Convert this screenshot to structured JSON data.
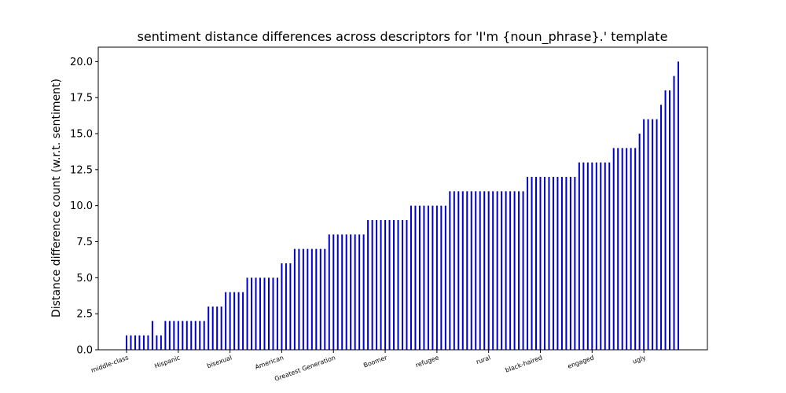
{
  "chart_data": {
    "type": "bar",
    "title": "sentiment distance differences across descriptors for 'I'm {noun_phrase}.' template",
    "xlabel": "",
    "ylabel": "Distance difference count (w.r.t. sentiment)",
    "ylim": [
      0,
      21
    ],
    "yticks": [
      "0.0",
      "2.5",
      "5.0",
      "7.5",
      "10.0",
      "12.5",
      "15.0",
      "17.5",
      "20.0"
    ],
    "bar_color": "#0000cc",
    "grid": false,
    "xtick_labels": [
      "middle-class",
      "Hispanic",
      "bisexual",
      "American",
      "Greatest Generation",
      "Boomer",
      "refugee",
      "rural",
      "black-haired",
      "engaged",
      "ugly"
    ],
    "xtick_positions": [
      0,
      12,
      24,
      36,
      48,
      60,
      72,
      84,
      96,
      108,
      120
    ],
    "values": [
      1,
      1,
      1,
      1,
      1,
      1,
      2,
      1,
      1,
      2,
      2,
      2,
      2,
      2,
      2,
      2,
      2,
      2,
      2,
      3,
      3,
      3,
      3,
      4,
      4,
      4,
      4,
      4,
      5,
      5,
      5,
      5,
      5,
      5,
      5,
      5,
      6,
      6,
      6,
      7,
      7,
      7,
      7,
      7,
      7,
      7,
      7,
      8,
      8,
      8,
      8,
      8,
      8,
      8,
      8,
      8,
      9,
      9,
      9,
      9,
      9,
      9,
      9,
      9,
      9,
      9,
      10,
      10,
      10,
      10,
      10,
      10,
      10,
      10,
      10,
      11,
      11,
      11,
      11,
      11,
      11,
      11,
      11,
      11,
      11,
      11,
      11,
      11,
      11,
      11,
      11,
      11,
      11,
      12,
      12,
      12,
      12,
      12,
      12,
      12,
      12,
      12,
      12,
      12,
      12,
      13,
      13,
      13,
      13,
      13,
      13,
      13,
      13,
      14,
      14,
      14,
      14,
      14,
      14,
      15,
      16,
      16,
      16,
      16,
      17,
      18,
      18,
      19,
      20
    ]
  }
}
